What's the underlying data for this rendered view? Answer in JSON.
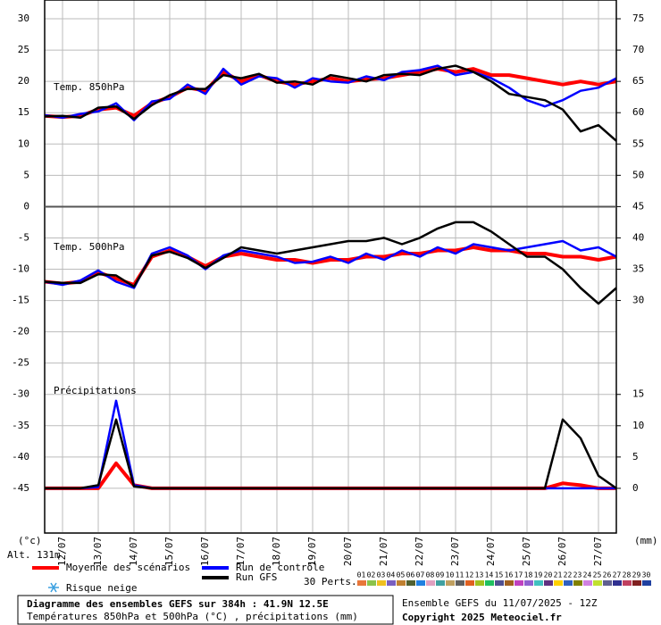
{
  "chart_data": {
    "type": "line",
    "annotations": [
      "Temp. 850hPa",
      "Temp. 500hPa",
      "Précipitations"
    ],
    "y_unit": "(°c)",
    "y2_unit": "(mm)",
    "altitude": "Alt. 131m",
    "x": [
      0,
      12,
      24,
      36,
      48,
      60,
      72,
      84,
      96,
      108,
      120,
      132,
      144,
      156,
      168,
      180,
      192,
      204,
      216,
      228,
      240,
      252,
      264,
      276,
      288,
      300,
      312,
      324,
      336,
      348,
      360,
      372,
      384
    ],
    "xlim": [
      0,
      384
    ],
    "xticks": [
      {
        "value": 12,
        "label": "12/07"
      },
      {
        "value": 36,
        "label": "13/07"
      },
      {
        "value": 60,
        "label": "14/07"
      },
      {
        "value": 84,
        "label": "15/07"
      },
      {
        "value": 108,
        "label": "16/07"
      },
      {
        "value": 132,
        "label": "17/07"
      },
      {
        "value": 156,
        "label": "18/07"
      },
      {
        "value": 180,
        "label": "19/07"
      },
      {
        "value": 204,
        "label": "20/07"
      },
      {
        "value": 228,
        "label": "21/07"
      },
      {
        "value": 252,
        "label": "22/07"
      },
      {
        "value": 276,
        "label": "23/07"
      },
      {
        "value": 300,
        "label": "24/07"
      },
      {
        "value": 324,
        "label": "25/07"
      },
      {
        "value": 348,
        "label": "26/07"
      },
      {
        "value": 372,
        "label": "27/07"
      }
    ],
    "ylim": [
      -52,
      33
    ],
    "yticks": [
      30,
      25,
      20,
      15,
      10,
      5,
      0,
      -5,
      -10,
      -15,
      -20,
      -25,
      -30,
      -35,
      -40,
      -45
    ],
    "y2lim": [
      -7,
      78
    ],
    "y2ticks": [
      75,
      70,
      65,
      60,
      55,
      50,
      45,
      40,
      35,
      30,
      15,
      10,
      5,
      0
    ],
    "grid": true,
    "series": [
      {
        "name": "Moyenne des scénarios",
        "color": "#ff0000",
        "width": 4,
        "t850": [
          14.5,
          14.3,
          14.5,
          15.5,
          15.8,
          14.5,
          16.5,
          17.5,
          19,
          18.5,
          21.5,
          20,
          21,
          20,
          19.5,
          20,
          20.5,
          20,
          20.3,
          20.5,
          21,
          21.5,
          22,
          21.5,
          22,
          21,
          21,
          20.5,
          20,
          19.5,
          20,
          19.5,
          20
        ],
        "t500": [
          -12,
          -12.3,
          -12,
          -10.5,
          -11.5,
          -12.5,
          -8,
          -7,
          -8,
          -9.5,
          -8,
          -7.5,
          -8,
          -8.5,
          -8.5,
          -9,
          -8.5,
          -8.5,
          -8,
          -8,
          -7.5,
          -7.5,
          -7,
          -7,
          -6.5,
          -7,
          -7,
          -7.5,
          -7.5,
          -8,
          -8,
          -8.5,
          -8
        ],
        "precip": [
          0,
          0,
          0,
          0,
          4,
          0.5,
          0,
          0,
          0,
          0,
          0,
          0,
          0,
          0,
          0,
          0,
          0,
          0,
          0,
          0,
          0,
          0,
          0,
          0,
          0,
          0,
          0,
          0,
          0,
          0.8,
          0.5,
          0,
          0
        ]
      },
      {
        "name": "Run de contrôle",
        "color": "#0000ff",
        "width": 2.5,
        "t850": [
          14.6,
          14.2,
          14.8,
          15.2,
          16.5,
          13.8,
          16.8,
          17.2,
          19.5,
          18,
          22,
          19.5,
          20.8,
          20.5,
          19,
          20.5,
          20,
          19.8,
          20.8,
          20.2,
          21.5,
          21.8,
          22.5,
          21,
          21.5,
          20.5,
          19,
          17,
          16,
          17,
          18.5,
          19,
          20.5
        ],
        "t500": [
          -12,
          -12.5,
          -11.8,
          -10.2,
          -12,
          -13,
          -7.5,
          -6.5,
          -7.8,
          -10,
          -7.8,
          -7,
          -7.5,
          -8,
          -9,
          -8.8,
          -8,
          -9,
          -7.5,
          -8.5,
          -7,
          -8,
          -6.5,
          -7.5,
          -6,
          -6.5,
          -7,
          -6.5,
          -6,
          -5.5,
          -7,
          -6.5,
          -8
        ],
        "precip": [
          0,
          0,
          0,
          0.2,
          14,
          0.5,
          0,
          0,
          0,
          0,
          0,
          0,
          0,
          0,
          0,
          0,
          0,
          0,
          0,
          0,
          0,
          0,
          0,
          0,
          0,
          0,
          0,
          0,
          0,
          0,
          0,
          0,
          0
        ]
      },
      {
        "name": "Run GFS",
        "color": "#000000",
        "width": 2.5,
        "t850": [
          14.4,
          14.5,
          14.2,
          15.8,
          16,
          14,
          16.2,
          17.8,
          18.8,
          18.8,
          21,
          20.5,
          21.2,
          19.8,
          20,
          19.5,
          21,
          20.5,
          20,
          21,
          21.2,
          21,
          22,
          22.5,
          21.5,
          20,
          18,
          17.5,
          17,
          15.5,
          12,
          13,
          10.5
        ],
        "t500": [
          -12,
          -12.2,
          -12.2,
          -10.8,
          -11,
          -12.8,
          -7.8,
          -7.2,
          -8.2,
          -9.8,
          -8.2,
          -6.5,
          -7,
          -7.5,
          -7,
          -6.5,
          -6,
          -5.5,
          -5.5,
          -5,
          -6,
          -5,
          -3.5,
          -2.5,
          -2.5,
          -4,
          -6,
          -8,
          -8,
          -10,
          -13,
          -15.5,
          -13
        ],
        "precip": [
          0,
          0,
          0,
          0.5,
          11,
          0.3,
          0,
          0,
          0,
          0,
          0,
          0,
          0,
          0,
          0,
          0,
          0,
          0,
          0,
          0,
          0,
          0,
          0,
          0,
          0,
          0,
          0,
          0,
          0,
          11,
          8,
          2,
          0
        ]
      }
    ],
    "snow_label": "Risque neige",
    "perturbations_label": "30 Perts.",
    "perturbations": [
      {
        "label": "01",
        "color": "#e8773a"
      },
      {
        "label": "02",
        "color": "#8bc34a"
      },
      {
        "label": "03",
        "color": "#f0c020"
      },
      {
        "label": "04",
        "color": "#7a5fc0"
      },
      {
        "label": "05",
        "color": "#c08030"
      },
      {
        "label": "06",
        "color": "#506030"
      },
      {
        "label": "07",
        "color": "#2080e0"
      },
      {
        "label": "08",
        "color": "#e0a0c0"
      },
      {
        "label": "09",
        "color": "#40a0a0"
      },
      {
        "label": "10",
        "color": "#c0a060"
      },
      {
        "label": "11",
        "color": "#606060"
      },
      {
        "label": "12",
        "color": "#e06020"
      },
      {
        "label": "13",
        "color": "#a0c020"
      },
      {
        "label": "14",
        "color": "#20c060"
      },
      {
        "label": "15",
        "color": "#505090"
      },
      {
        "label": "16",
        "color": "#a06020"
      },
      {
        "label": "17",
        "color": "#c040c0"
      },
      {
        "label": "18",
        "color": "#9060d0"
      },
      {
        "label": "19",
        "color": "#40c0c0"
      },
      {
        "label": "20",
        "color": "#603080"
      },
      {
        "label": "21",
        "color": "#ffd000"
      },
      {
        "label": "22",
        "color": "#3060c0"
      },
      {
        "label": "23",
        "color": "#808000"
      },
      {
        "label": "24",
        "color": "#d080e0"
      },
      {
        "label": "25",
        "color": "#c0e030"
      },
      {
        "label": "26",
        "color": "#606090"
      },
      {
        "label": "27",
        "color": "#303090"
      },
      {
        "label": "28",
        "color": "#c04060"
      },
      {
        "label": "29",
        "color": "#802020"
      },
      {
        "label": "30",
        "color": "#2040a0"
      }
    ],
    "footer": {
      "title": "Diagramme des ensembles GEFS sur 384h : 41.9N 12.5E",
      "subtitle": "Températures 850hPa et 500hPa (°C) , précipitations (mm)",
      "run": "Ensemble GEFS du 11/07/2025 - 12Z",
      "copyright": "Copyright 2025 Meteociel.fr"
    }
  }
}
